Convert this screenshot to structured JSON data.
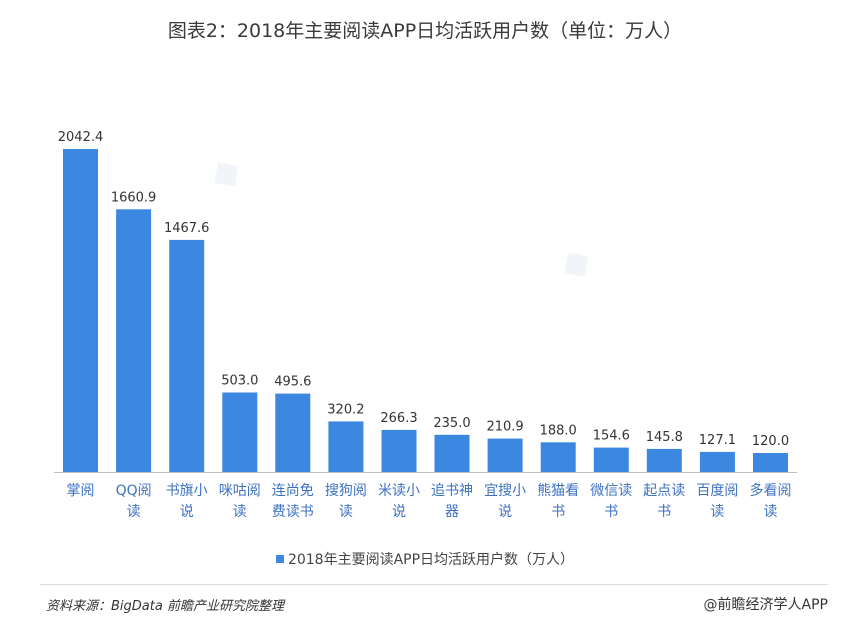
{
  "header": {
    "title": "图表2：2018年主要阅读APP日均活跃用户数（单位：万人）"
  },
  "chart_data": {
    "type": "bar",
    "title": "图表2：2018年主要阅读APP日均活跃用户数（单位：万人）",
    "categories": [
      "掌阅",
      "QQ阅读",
      "书旗小说",
      "咪咕阅读",
      "连尚免费读书",
      "搜狗阅读",
      "米读小说",
      "追书神器",
      "宜搜小说",
      "熊猫看书",
      "微信读书",
      "起点读书",
      "百度阅读",
      "多看阅读"
    ],
    "category_lines": [
      [
        "掌阅"
      ],
      [
        "QQ阅",
        "读"
      ],
      [
        "书旗小",
        "说"
      ],
      [
        "咪咕阅",
        "读"
      ],
      [
        "连尚免",
        "费读书"
      ],
      [
        "搜狗阅",
        "读"
      ],
      [
        "米读小",
        "说"
      ],
      [
        "追书神",
        "器"
      ],
      [
        "宜搜小",
        "说"
      ],
      [
        "熊猫看",
        "书"
      ],
      [
        "微信读",
        "书"
      ],
      [
        "起点读",
        "书"
      ],
      [
        "百度阅",
        "读"
      ],
      [
        "多看阅",
        "读"
      ]
    ],
    "series": [
      {
        "name": "2018年主要阅读APP日均活跃用户数（万人）",
        "values": [
          2042.4,
          1660.9,
          1467.6,
          503.0,
          495.6,
          320.2,
          266.3,
          235.0,
          210.9,
          188.0,
          154.6,
          145.8,
          127.1,
          120.0
        ],
        "labels": [
          "2042.4",
          "1660.9",
          "1467.6",
          "503.0",
          "495.6",
          "320.2",
          "266.3",
          "235.0",
          "210.9",
          "188.0",
          "154.6",
          "145.8",
          "127.1",
          "120.0"
        ]
      }
    ],
    "xlabel": "",
    "ylabel": "",
    "ylim": [
      0,
      2042.4
    ],
    "grid": false,
    "legend": "bottom-center",
    "colors": {
      "bar": "#3c87e0",
      "axis": "#bfbfbf",
      "category_text": "#3d72c2",
      "value_text": "#333333"
    }
  },
  "legend": {
    "label": "2018年主要阅读APP日均活跃用户数（万人）"
  },
  "footer": {
    "source": "资料来源：BigData  前瞻产业研究院整理",
    "brand": "@前瞻经济学人APP"
  }
}
